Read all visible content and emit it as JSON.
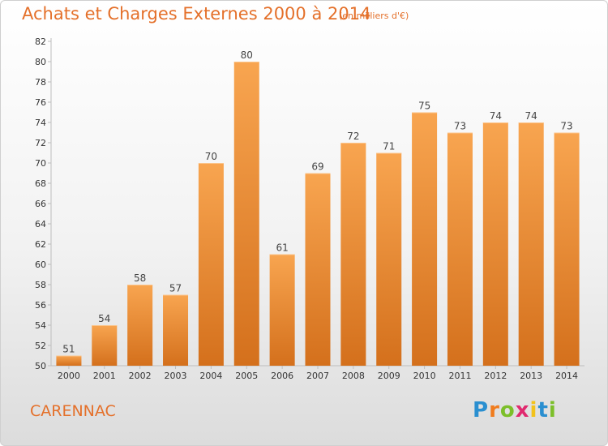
{
  "chart_data": {
    "type": "bar",
    "title": "Achats et Charges Externes 2000 à 2014",
    "subtitle": "(en milliers d'€)",
    "categories": [
      "2000",
      "2001",
      "2002",
      "2003",
      "2004",
      "2005",
      "2006",
      "2007",
      "2008",
      "2009",
      "2010",
      "2011",
      "2012",
      "2013",
      "2014"
    ],
    "values": [
      51,
      54,
      58,
      57,
      70,
      80,
      61,
      69,
      72,
      71,
      75,
      73,
      74,
      74,
      73
    ],
    "ylim": [
      50,
      82
    ],
    "yticks": [
      50,
      52,
      54,
      56,
      58,
      60,
      62,
      64,
      66,
      68,
      70,
      72,
      74,
      76,
      78,
      80,
      82
    ],
    "xlabel": "",
    "ylabel": "",
    "grid": false,
    "bar_color": "#f0923a"
  },
  "location": "CARENNAC",
  "brand": {
    "letters": [
      "P",
      "r",
      "o",
      "x",
      "i",
      "t",
      "i"
    ],
    "colors": [
      "#2a8fd0",
      "#f07c1e",
      "#7cbf2a",
      "#e02a6f",
      "#f2c21b",
      "#2a8fd0",
      "#7cbf2a"
    ]
  }
}
